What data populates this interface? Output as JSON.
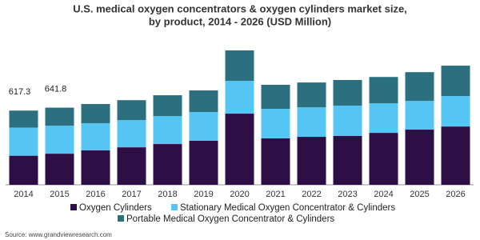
{
  "chart_data": {
    "type": "stacked_bar",
    "title": "U.S. medical oxygen concentrators & oxygen cylinders market size,",
    "subtitle": "by product, 2014 - 2026 (USD Million)",
    "categories": [
      "2014",
      "2015",
      "2016",
      "2017",
      "2018",
      "2019",
      "2020",
      "2021",
      "2022",
      "2023",
      "2024",
      "2025",
      "2026"
    ],
    "series": [
      {
        "name": "Oxygen Cylinders",
        "color": "#2d0f45",
        "values": [
          242,
          259,
          286,
          312,
          339,
          366,
          592,
          386,
          399,
          406,
          432,
          459,
          485
        ]
      },
      {
        "name": "Stationary Medical Oxygen Concentrator & Cylinders",
        "color": "#55c6f4",
        "values": [
          234,
          233,
          226,
          226,
          233,
          239,
          273,
          246,
          246,
          253,
          246,
          239,
          253
        ]
      },
      {
        "name": "Portable Medical Oxygen Concentrator & Cylinders",
        "color": "#2c6f7f",
        "values": [
          141.3,
          149.8,
          160,
          166,
          173,
          180,
          253,
          200,
          206,
          213,
          219,
          239,
          253
        ]
      }
    ],
    "total_labels": [
      617.3,
      641.8
    ],
    "source": "Source: www.grandviewresearch.com"
  }
}
